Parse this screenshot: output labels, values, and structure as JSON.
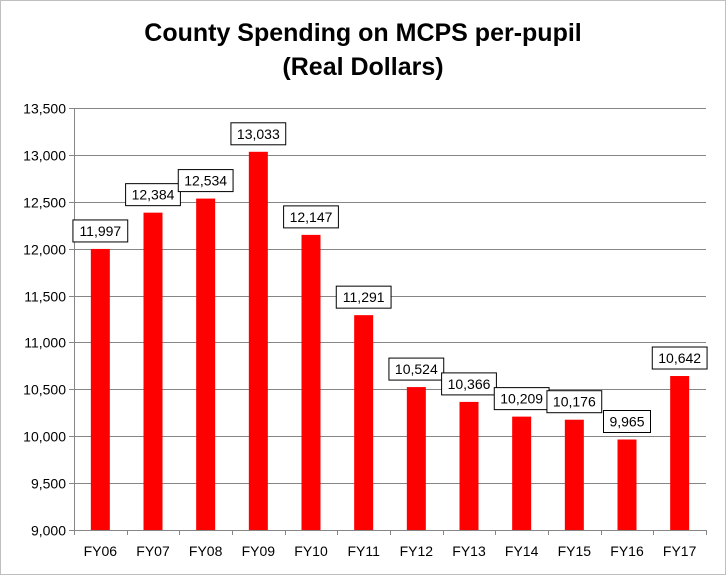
{
  "chart_data": {
    "type": "bar",
    "title_lines": [
      "County Spending on MCPS per-pupil",
      "(Real Dollars)"
    ],
    "xlabel": "",
    "ylabel": "",
    "ylim": [
      9000,
      13500
    ],
    "y_ticks": [
      9000,
      9500,
      10000,
      10500,
      11000,
      11500,
      12000,
      12500,
      13000,
      13500
    ],
    "y_tick_labels": [
      "9,000",
      "9,500",
      "10,000",
      "10,500",
      "11,000",
      "11,500",
      "12,000",
      "12,500",
      "13,000",
      "13,500"
    ],
    "categories": [
      "FY06",
      "FY07",
      "FY08",
      "FY09",
      "FY10",
      "FY11",
      "FY12",
      "FY13",
      "FY14",
      "FY15",
      "FY16",
      "FY17"
    ],
    "values": [
      11997,
      12384,
      12534,
      13033,
      12147,
      11291,
      10524,
      10366,
      10209,
      10176,
      9965,
      10642
    ],
    "data_labels": [
      "11,997",
      "12,384",
      "12,534",
      "13,033",
      "12,147",
      "11,291",
      "10,524",
      "10,366",
      "10,209",
      "10,176",
      "9,965",
      "10,642"
    ],
    "bar_color": "#ff0000",
    "grid": true,
    "legend": "none"
  }
}
